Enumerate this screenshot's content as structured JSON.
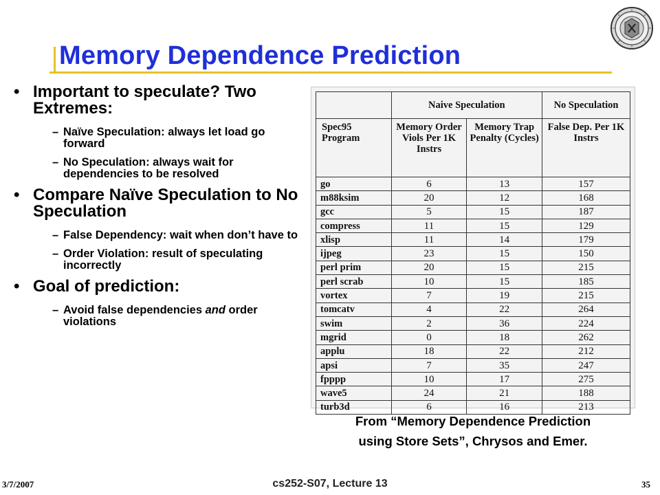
{
  "slide": {
    "title": "Memory Dependence Prediction",
    "bullets": [
      {
        "text": "Important to speculate? Two Extremes:",
        "sub": [
          {
            "text": "Naïve Speculation: always let load go forward"
          },
          {
            "text": "No Speculation: always wait for dependencies to be resolved"
          }
        ]
      },
      {
        "text": "Compare Naïve Speculation to No Speculation",
        "sub": [
          {
            "text": "False Dependency: wait when don’t have to"
          },
          {
            "text": "Order Violation: result of speculating incorrectly"
          }
        ]
      },
      {
        "text": "Goal of prediction:",
        "sub": [
          {
            "pre": "Avoid false dependencies ",
            "em": "and",
            "post": " order violations"
          }
        ]
      }
    ],
    "caption_line1": "From “Memory Dependence Prediction",
    "caption_line2": "using Store Sets”, Chrysos and Emer.",
    "footer": {
      "date": "3/7/2007",
      "course": "cs252-S07, Lecture 13",
      "page": "35"
    }
  },
  "table": {
    "group_headers": [
      "Naive Speculation",
      "No Speculation"
    ],
    "columns": [
      "Spec95 Program",
      "Memory Order Viols Per 1K Instrs",
      "Memory Trap Penalty (Cycles)",
      "False Dep. Per 1K Instrs"
    ],
    "rows": [
      [
        "go",
        "6",
        "13",
        "157"
      ],
      [
        "m88ksim",
        "20",
        "12",
        "168"
      ],
      [
        "gcc",
        "5",
        "15",
        "187"
      ],
      [
        "compress",
        "11",
        "15",
        "129"
      ],
      [
        "xlisp",
        "11",
        "14",
        "179"
      ],
      [
        "ijpeg",
        "23",
        "15",
        "150"
      ],
      [
        "perl prim",
        "20",
        "15",
        "215"
      ],
      [
        "perl scrab",
        "10",
        "15",
        "185"
      ],
      [
        "vortex",
        "7",
        "19",
        "215"
      ],
      [
        "tomcatv",
        "4",
        "22",
        "264"
      ],
      [
        "swim",
        "2",
        "36",
        "224"
      ],
      [
        "mgrid",
        "0",
        "18",
        "262"
      ],
      [
        "applu",
        "18",
        "22",
        "212"
      ],
      [
        "apsi",
        "7",
        "35",
        "247"
      ],
      [
        "fpppp",
        "10",
        "17",
        "275"
      ],
      [
        "wave5",
        "24",
        "21",
        "188"
      ],
      [
        "turb3d",
        "6",
        "16",
        "213"
      ]
    ]
  },
  "colors": {
    "title": "#1f2fd8",
    "underline": "#e8c02a"
  },
  "icons": {
    "seal": "university-seal-icon"
  }
}
